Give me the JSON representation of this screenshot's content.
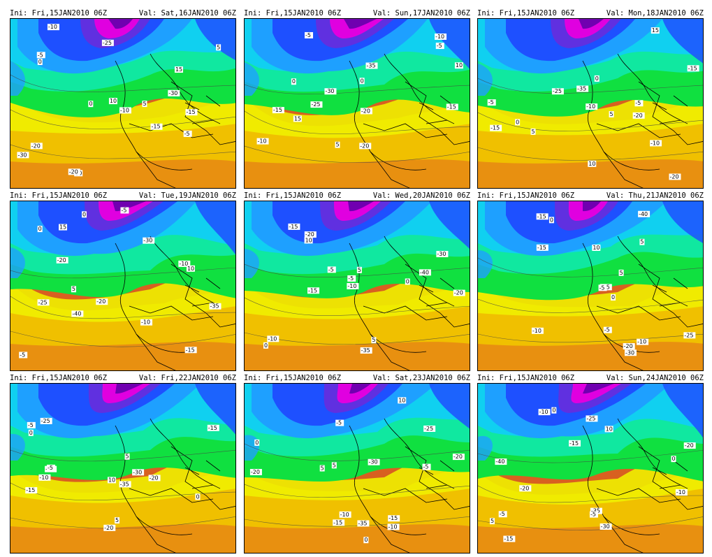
{
  "panels": [
    {
      "ini": "Ini: Fri,15JAN2010 06Z",
      "val": "Val: Sat,16JAN2010 06Z",
      "labels": [
        "-30",
        "-20",
        "-25",
        "-15",
        "-10",
        "-5",
        "0",
        "5",
        "10",
        "15",
        "-30",
        "-20",
        "-15",
        "-10",
        "-5",
        "0",
        "5",
        "10"
      ]
    },
    {
      "ini": "Ini: Fri,15JAN2010 06Z",
      "val": "Val: Sun,17JAN2010 06Z",
      "labels": [
        "-35",
        "-30",
        "-25",
        "-20",
        "-15",
        "-10",
        "-5",
        "0",
        "5",
        "10",
        "15",
        "-20",
        "-15",
        "-10",
        "-5",
        "0"
      ]
    },
    {
      "ini": "Ini: Fri,15JAN2010 06Z",
      "val": "Val: Mon,18JAN2010 06Z",
      "labels": [
        "-35",
        "-25",
        "-20",
        "-15",
        "-10",
        "-5",
        "0",
        "5",
        "10",
        "15",
        "-20",
        "-15",
        "-10",
        "-5",
        "0",
        "5"
      ]
    },
    {
      "ini": "Ini: Fri,15JAN2010 06Z",
      "val": "Val: Tue,19JAN2010 06Z",
      "labels": [
        "-40",
        "-35",
        "-30",
        "-25",
        "-20",
        "-15",
        "-10",
        "-5",
        "0",
        "5",
        "10",
        "15",
        "-20",
        "-10",
        "-5",
        "0"
      ]
    },
    {
      "ini": "Ini: Fri,15JAN2010 06Z",
      "val": "Val: Wed,20JAN2010 06Z",
      "labels": [
        "-40",
        "-35",
        "-30",
        "-20",
        "-15",
        "-10",
        "-5",
        "0",
        "5",
        "10",
        "-20",
        "-15",
        "-10",
        "-5",
        "0",
        "5"
      ]
    },
    {
      "ini": "Ini: Fri,15JAN2010 06Z",
      "val": "Val: Thu,21JAN2010 06Z",
      "labels": [
        "-40",
        "-35",
        "-30",
        "-25",
        "-20",
        "-15",
        "-10",
        "-5",
        "0",
        "5",
        "10",
        "-15",
        "-10",
        "-5",
        "0",
        "5"
      ]
    },
    {
      "ini": "Ini: Fri,15JAN2010 06Z",
      "val": "Val: Fri,22JAN2010 06Z",
      "labels": [
        "-35",
        "-30",
        "-25",
        "-20",
        "-15",
        "-10",
        "-5",
        "0",
        "5",
        "10",
        "-20",
        "-15",
        "-10",
        "-5",
        "0",
        "5"
      ]
    },
    {
      "ini": "Ini: Fri,15JAN2010 06Z",
      "val": "Val: Sat,23JAN2010 06Z",
      "labels": [
        "-35",
        "-30",
        "-25",
        "-20",
        "-15",
        "-10",
        "-5",
        "0",
        "5",
        "10",
        "-20",
        "-15",
        "-10",
        "-5",
        "0",
        "5"
      ]
    },
    {
      "ini": "Ini: Fri,15JAN2010 06Z",
      "val": "Val: Sun,24JAN2010 06Z",
      "labels": [
        "-35",
        "-30",
        "-40",
        "-25",
        "-20",
        "-15",
        "-10",
        "-5",
        "0",
        "5",
        "10",
        "-20",
        "-15",
        "-10",
        "-5",
        "0"
      ]
    }
  ],
  "colors": {
    "magenta": "#e000e0",
    "purple": "#7000b0",
    "violet": "#6030e0",
    "blue": "#1e50ff",
    "lightblue": "#1ea0ff",
    "cyan": "#10d0f0",
    "teal": "#10e8a0",
    "green": "#10e040",
    "yellowgreen": "#a8e818",
    "yellow": "#f0f000",
    "gold": "#f0c000",
    "orange": "#e89010",
    "darkorange": "#d86020"
  }
}
